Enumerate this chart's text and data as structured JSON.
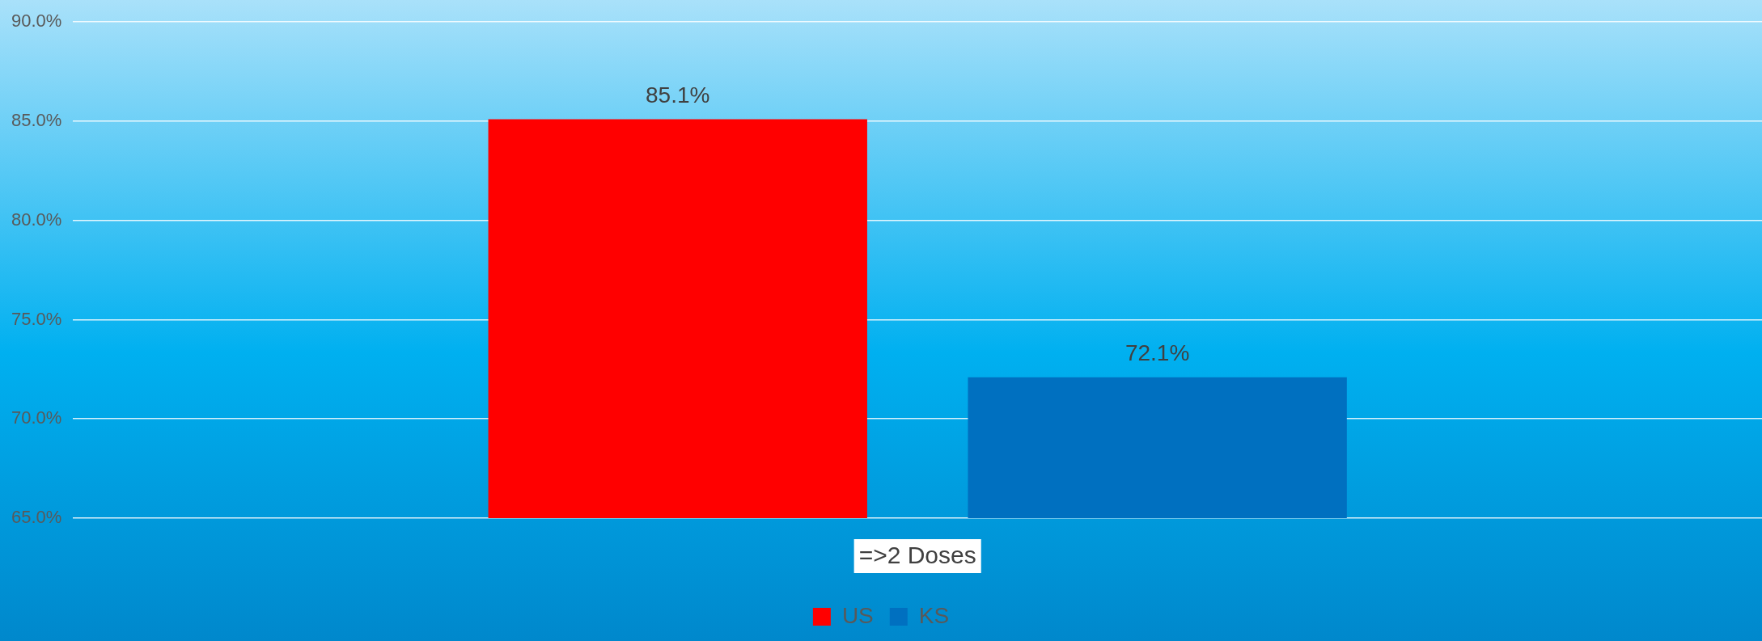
{
  "chart_data": {
    "type": "bar",
    "categories": [
      "=>2 Doses"
    ],
    "series": [
      {
        "name": "US",
        "color": "#ff0000",
        "values": [
          85.1
        ]
      },
      {
        "name": "KS",
        "color": "#0070c0",
        "values": [
          72.1
        ]
      }
    ],
    "ylim": [
      65,
      90
    ],
    "yticks": [
      {
        "value": 65,
        "label": "65.0%"
      },
      {
        "value": 70,
        "label": "70.0%"
      },
      {
        "value": 75,
        "label": "75.0%"
      },
      {
        "value": 80,
        "label": "80.0%"
      },
      {
        "value": 85,
        "label": "85.0%"
      },
      {
        "value": 90,
        "label": "90.0%"
      }
    ],
    "value_labels": [
      [
        "85.1%"
      ],
      [
        "72.1%"
      ]
    ],
    "grid": "y",
    "legend": "bottom"
  }
}
